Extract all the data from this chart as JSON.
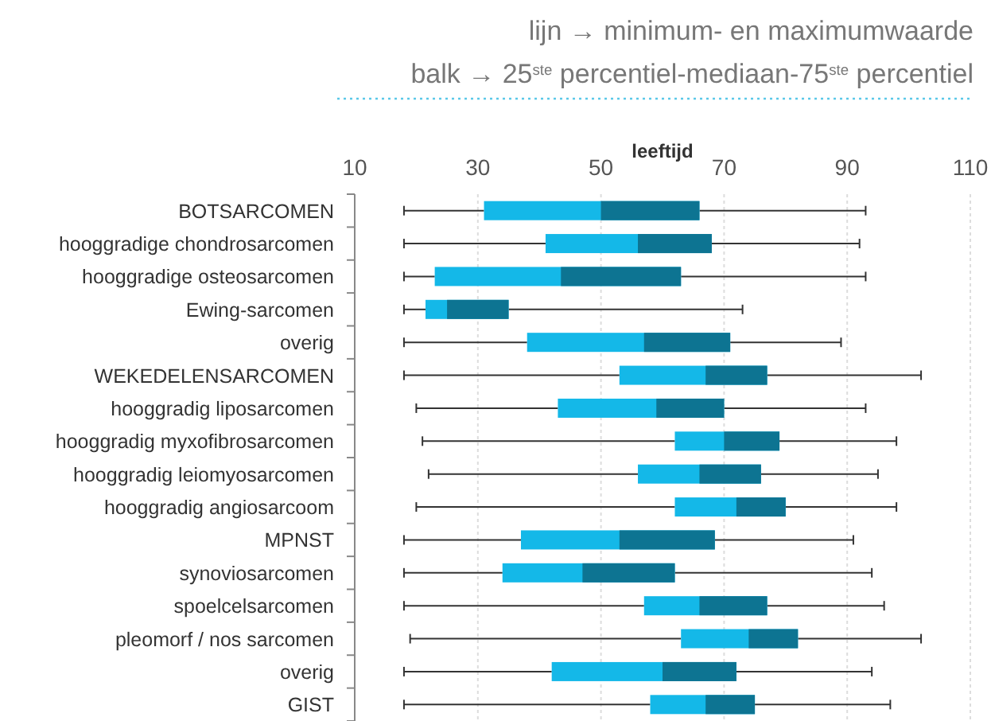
{
  "chart_data": {
    "type": "box",
    "orientation": "horizontal",
    "title": "lijn → minimum- en maximumwaarde",
    "subtitle": "balk → 25$^{ste}$ percentiel-mediaan-75$^{ste}$ percentiel",
    "xlabel": "leeftijd",
    "xlim": [
      10,
      110
    ],
    "xticks": [
      10,
      30,
      50,
      70,
      90,
      110
    ],
    "grid": "x",
    "color": "#14b8e8",
    "categories": [
      "BOTSARCOMEN",
      "hooggradige chondrosarcomen",
      "hooggradige osteosarcomen",
      "Ewing-sarcomen",
      "overig",
      "WEKEDELENSARCOMEN",
      "hooggradig liposarcomen",
      "hooggradig myxofibrosarcomen",
      "hooggradig leiomyosarcomen",
      "hooggradig angiosarcoom",
      "MPNST",
      "synoviosarcomen",
      "spoelcelsarcomen",
      "pleomorf / nos sarcomen",
      "overig",
      "GIST"
    ],
    "boxes": [
      {
        "low": 18,
        "q1": 31,
        "median": 50,
        "q3": 66,
        "high": 93
      },
      {
        "low": 18,
        "q1": 41,
        "median": 56,
        "q3": 68,
        "high": 92
      },
      {
        "low": 18,
        "q1": 23,
        "median": 43.5,
        "q3": 63,
        "high": 93
      },
      {
        "low": 18,
        "q1": 21.5,
        "median": 25,
        "q3": 35,
        "high": 73
      },
      {
        "low": 18,
        "q1": 38,
        "median": 57,
        "q3": 71,
        "high": 89
      },
      {
        "low": 18,
        "q1": 53,
        "median": 67,
        "q3": 77,
        "high": 102
      },
      {
        "low": 20,
        "q1": 43,
        "median": 59,
        "q3": 70,
        "high": 93
      },
      {
        "low": 21,
        "q1": 62,
        "median": 70,
        "q3": 79,
        "high": 98
      },
      {
        "low": 22,
        "q1": 56,
        "median": 66,
        "q3": 76,
        "high": 95
      },
      {
        "low": 20,
        "q1": 62,
        "median": 72,
        "q3": 80,
        "high": 98
      },
      {
        "low": 18,
        "q1": 37,
        "median": 53,
        "q3": 68.5,
        "high": 91
      },
      {
        "low": 18,
        "q1": 34,
        "median": 47,
        "q3": 62,
        "high": 94
      },
      {
        "low": 18,
        "q1": 57,
        "median": 66,
        "q3": 77,
        "high": 96
      },
      {
        "low": 19,
        "q1": 63,
        "median": 74,
        "q3": 82,
        "high": 102
      },
      {
        "low": 18,
        "q1": 42,
        "median": 60,
        "q3": 72,
        "high": 94
      },
      {
        "low": 18,
        "q1": 58,
        "median": 67,
        "q3": 75,
        "high": 97
      }
    ]
  }
}
